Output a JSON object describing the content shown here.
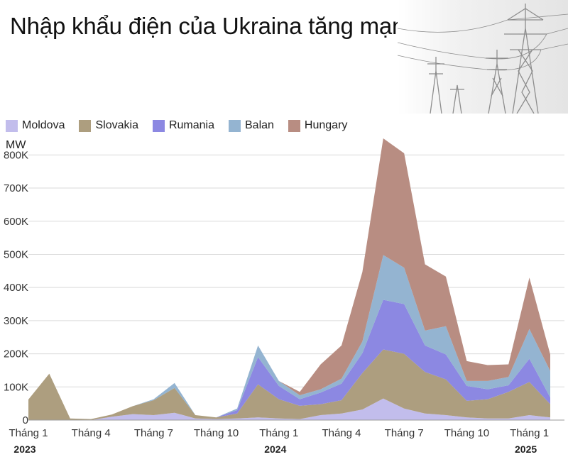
{
  "title": "Nhập khẩu điện của Ukraina tăng mạnh",
  "pylon_icon": "power-transmission-tower-icon",
  "chart_data": {
    "type": "area",
    "stacked": true,
    "unit": "MW",
    "ylim": [
      0,
      850000
    ],
    "yticks": [
      {
        "value": 0,
        "label": "0"
      },
      {
        "value": 100000,
        "label": "100K"
      },
      {
        "value": 200000,
        "label": "200K"
      },
      {
        "value": 300000,
        "label": "300K"
      },
      {
        "value": 400000,
        "label": "400K"
      },
      {
        "value": 500000,
        "label": "500K"
      },
      {
        "value": 600000,
        "label": "600K"
      },
      {
        "value": 700000,
        "label": "700K"
      },
      {
        "value": 800000,
        "label": "800K"
      }
    ],
    "grid": true,
    "legend_position": "top-left",
    "x_count": 26,
    "x_ticks": [
      {
        "index": 0,
        "label": "Tháng 1",
        "year": "2023"
      },
      {
        "index": 3,
        "label": "Tháng 4",
        "year": ""
      },
      {
        "index": 6,
        "label": "Tháng 7",
        "year": ""
      },
      {
        "index": 9,
        "label": "Tháng 10",
        "year": ""
      },
      {
        "index": 12,
        "label": "Tháng 1",
        "year": "2024"
      },
      {
        "index": 15,
        "label": "Tháng 4",
        "year": ""
      },
      {
        "index": 18,
        "label": "Tháng 7",
        "year": ""
      },
      {
        "index": 21,
        "label": "Tháng 10",
        "year": ""
      },
      {
        "index": 24,
        "label": "Tháng 1",
        "year": "2025"
      }
    ],
    "series": [
      {
        "name": "Moldova",
        "color": "#c2bdec",
        "values": [
          0,
          0,
          0,
          0,
          10000,
          18000,
          15000,
          22000,
          5000,
          3000,
          5000,
          8000,
          5000,
          3000,
          15000,
          20000,
          32000,
          65000,
          35000,
          20000,
          15000,
          8000,
          5000,
          5000,
          15000,
          8000
        ]
      },
      {
        "name": "Slovakia",
        "color": "#ad9e7f",
        "values": [
          62000,
          140000,
          5000,
          3000,
          7000,
          24000,
          45000,
          75000,
          10000,
          5000,
          15000,
          100000,
          58000,
          40000,
          33000,
          40000,
          110000,
          148000,
          165000,
          125000,
          108000,
          50000,
          58000,
          80000,
          100000,
          40000
        ]
      },
      {
        "name": "Rumania",
        "color": "#8c88e2",
        "values": [
          0,
          0,
          0,
          0,
          0,
          0,
          0,
          0,
          0,
          0,
          10000,
          82000,
          40000,
          20000,
          35000,
          50000,
          60000,
          150000,
          150000,
          80000,
          75000,
          45000,
          30000,
          20000,
          70000,
          20000
        ]
      },
      {
        "name": "Balan",
        "color": "#94b4d1",
        "values": [
          0,
          0,
          0,
          0,
          0,
          0,
          3000,
          15000,
          0,
          0,
          5000,
          35000,
          15000,
          12000,
          10000,
          15000,
          35000,
          135000,
          110000,
          45000,
          85000,
          15000,
          25000,
          25000,
          90000,
          80000
        ]
      },
      {
        "name": "Hungary",
        "color": "#b88d82",
        "values": [
          0,
          0,
          0,
          0,
          0,
          0,
          0,
          0,
          0,
          0,
          0,
          0,
          0,
          10000,
          75000,
          100000,
          210000,
          352000,
          345000,
          200000,
          150000,
          60000,
          48000,
          38000,
          155000,
          50000
        ]
      }
    ]
  }
}
